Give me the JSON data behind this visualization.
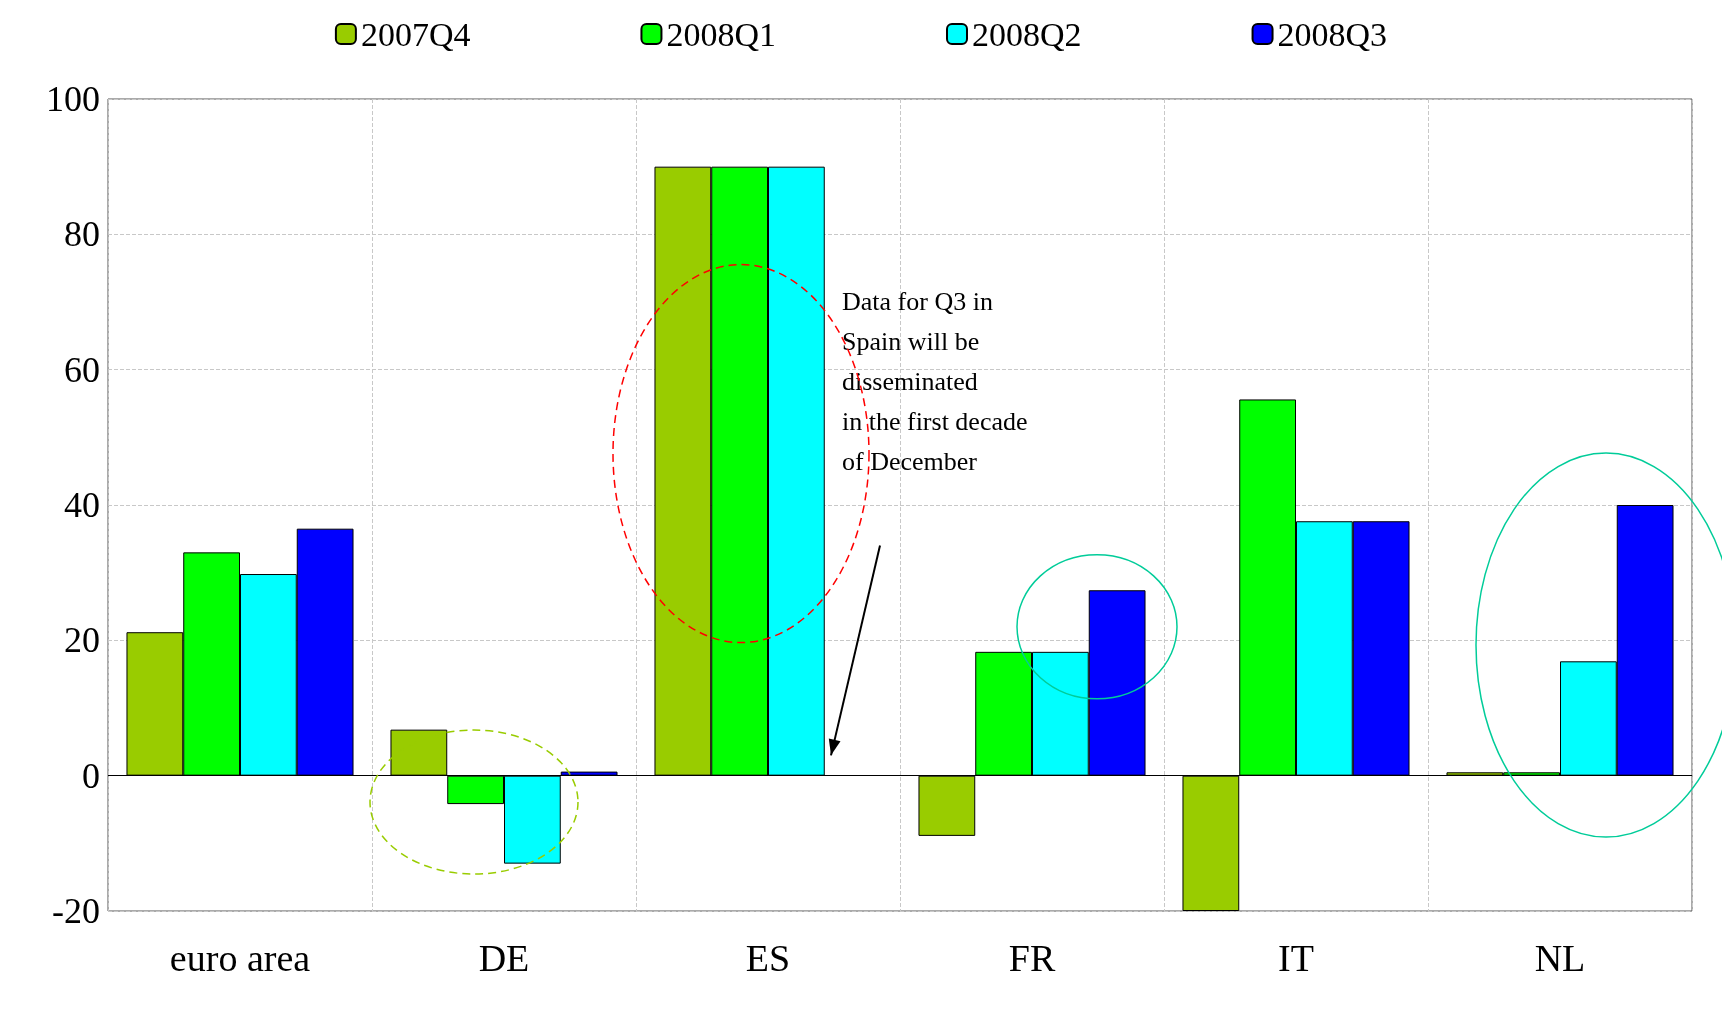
{
  "chart_data": {
    "type": "bar",
    "categories": [
      "euro area",
      "DE",
      "ES",
      "FR",
      "IT",
      "NL"
    ],
    "series": [
      {
        "name": "2007Q4",
        "color": "#99cc00",
        "values": [
          21.2,
          6.8,
          90,
          -8.9,
          -20,
          0.5
        ]
      },
      {
        "name": "2008Q1",
        "color": "#00ff00",
        "values": [
          33,
          -4.2,
          90,
          18.3,
          55.6,
          0.5
        ]
      },
      {
        "name": "2008Q2",
        "color": "#00ffff",
        "values": [
          29.8,
          -13,
          90,
          18.3,
          37.6,
          16.9
        ]
      },
      {
        "name": "2008Q3",
        "color": "#0000ff",
        "values": [
          36.5,
          0.6,
          null,
          27.4,
          37.6,
          40
        ]
      }
    ],
    "ylim": [
      -20,
      100
    ],
    "yticks": [
      -20,
      0,
      20,
      40,
      60,
      80,
      100
    ],
    "grid": true,
    "legend": "top",
    "annotations": [
      "Data for Q3 in\nSpain will be\ndisseminated\nin the first decade\nof December"
    ]
  }
}
